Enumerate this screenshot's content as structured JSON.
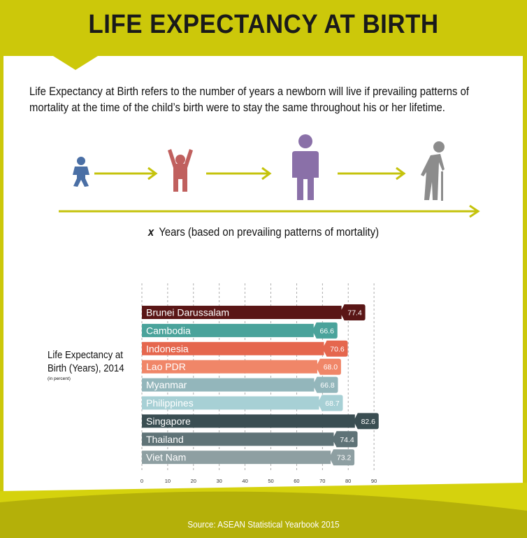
{
  "header": {
    "title": "LIFE EXPECTANCY AT BIRTH"
  },
  "definition": "Life Expectancy at Birth refers to the number of years a newborn will live if prevailing patterns of mortality  at the time of the child’s birth were to stay the same throughout his or her lifetime.",
  "lifecycle": {
    "stages": [
      "baby-icon",
      "child-icon",
      "adult-icon",
      "elderly-icon"
    ],
    "colors": {
      "baby": "#4a6fa5",
      "child": "#c0605e",
      "adult": "#8a70a8",
      "elderly": "#8c8c8c",
      "arrow": "#c5c30c"
    },
    "caption_x": "x",
    "caption_text": "Years (based on prevailing patterns of mortality)"
  },
  "chart_label": {
    "title": "Life Expectancy at Birth (Years), 2014",
    "note": "(in percent)"
  },
  "chart_data": {
    "type": "bar",
    "orientation": "horizontal",
    "categories": [
      "Brunei Darussalam",
      "Cambodia",
      "Indonesia",
      "Lao PDR",
      "Myanmar",
      "Philippines",
      "Singapore",
      "Thailand",
      "Viet Nam"
    ],
    "values": [
      77.4,
      66.6,
      70.6,
      68.0,
      66.8,
      68.7,
      82.6,
      74.4,
      73.2
    ],
    "value_labels": [
      "77.4",
      "66.6",
      "70.6",
      "68.0",
      "66.8",
      "68.7",
      "82.6",
      "74.4",
      "73.2"
    ],
    "colors": [
      "#5a1616",
      "#4aa39b",
      "#e5674e",
      "#f08668",
      "#93b6bb",
      "#a7d0d5",
      "#3a4e52",
      "#5f7377",
      "#8e9fa2"
    ],
    "xticks": [
      "0",
      "10",
      "20",
      "30",
      "40",
      "50",
      "60",
      "70",
      "80",
      "90"
    ],
    "xlim": [
      0,
      90
    ],
    "grid": true,
    "title": "",
    "xlabel": "",
    "ylabel": ""
  },
  "footer": {
    "source": "Source: ASEAN Statistical Yearbook 2015"
  }
}
